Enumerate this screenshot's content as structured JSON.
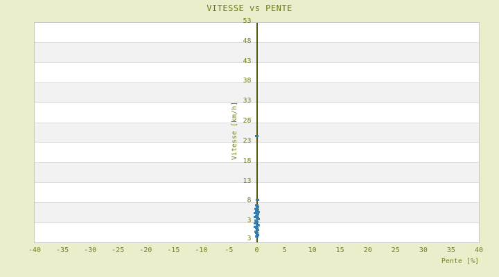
{
  "title": "VITESSE vs PENTE",
  "colors": {
    "background": "#eaeecb",
    "plot_background": "#ffffff",
    "stripe_band": "#f2f2f2",
    "grid_line": "#dddddd",
    "plot_border": "#c9c9c9",
    "title_text": "#6e7916",
    "tick_text": "#757e1e",
    "zero_axis": "#4d5a0c",
    "marker": "#327dad"
  },
  "chart_data": {
    "type": "scatter",
    "title": "VITESSE vs PENTE",
    "xlabel": "Pente [%]",
    "ylabel": "Vitesse [km/h]",
    "xlim": [
      -40,
      40
    ],
    "ylim": [
      -2,
      53
    ],
    "xticks": [
      -40,
      -35,
      -30,
      -25,
      -20,
      -15,
      -10,
      -5,
      0,
      5,
      10,
      15,
      20,
      25,
      30,
      35,
      40
    ],
    "yticks": [
      53,
      48,
      43,
      38,
      33,
      28,
      23,
      18,
      13,
      8,
      3
    ],
    "extra_bottom_y_label": "3",
    "grid": "horizontal-stripe-bands",
    "legend": "none",
    "series": [
      {
        "name": "vitesse",
        "marker": "square-dash",
        "color": "#327dad",
        "points": [
          {
            "x": 0.0,
            "y": 24.6
          },
          {
            "x": 0.1,
            "y": 8.6
          },
          {
            "x": 0.0,
            "y": 7.2
          },
          {
            "x": 0.1,
            "y": 6.9
          },
          {
            "x": -0.1,
            "y": 6.5
          },
          {
            "x": 0.1,
            "y": 6.2
          },
          {
            "x": 0.0,
            "y": 5.9
          },
          {
            "x": 0.2,
            "y": 5.6
          },
          {
            "x": -0.2,
            "y": 5.3
          },
          {
            "x": 0.1,
            "y": 5.0
          },
          {
            "x": 0.0,
            "y": 4.7
          },
          {
            "x": -0.3,
            "y": 4.4
          },
          {
            "x": 0.1,
            "y": 4.1
          },
          {
            "x": 0.2,
            "y": 3.8
          },
          {
            "x": -0.1,
            "y": 3.4
          },
          {
            "x": 0.0,
            "y": 3.1
          },
          {
            "x": -0.3,
            "y": 2.8
          },
          {
            "x": 0.1,
            "y": 2.5
          },
          {
            "x": 0.2,
            "y": 2.2
          },
          {
            "x": -0.2,
            "y": 1.9
          },
          {
            "x": 0.0,
            "y": 1.6
          },
          {
            "x": 0.1,
            "y": 1.0
          },
          {
            "x": -0.1,
            "y": 0.7
          },
          {
            "x": 0.0,
            "y": 0.3
          },
          {
            "x": 0.1,
            "y": -0.2
          },
          {
            "x": 0.0,
            "y": -0.6
          }
        ]
      }
    ]
  }
}
